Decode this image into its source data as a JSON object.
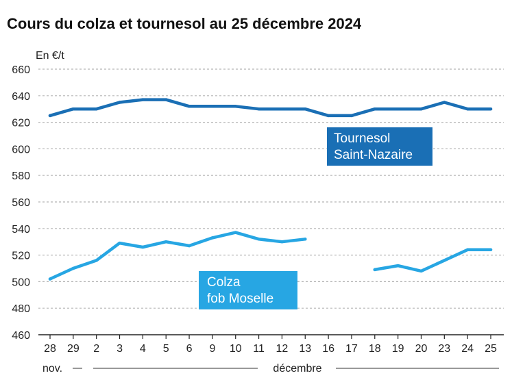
{
  "chart_data": {
    "type": "line",
    "title": "Cours du colza et tournesol au 25 décembre 2024",
    "ylabel": "En €/t",
    "ylim": [
      460,
      660
    ],
    "yticks": [
      460,
      480,
      500,
      520,
      540,
      560,
      580,
      600,
      620,
      640,
      660
    ],
    "categories": [
      "28",
      "29",
      "2",
      "3",
      "4",
      "5",
      "6",
      "9",
      "10",
      "11",
      "12",
      "13",
      "16",
      "17",
      "18",
      "19",
      "20",
      "23",
      "24",
      "25"
    ],
    "months": [
      {
        "label": "nov."
      },
      {
        "label": "décembre"
      }
    ],
    "series": [
      {
        "name": "Tournesol Saint-Nazaire",
        "label_lines": [
          "Tournesol",
          "Saint-Nazaire"
        ],
        "color": "#1a6fb5",
        "values": [
          625,
          630,
          630,
          635,
          637,
          637,
          632,
          632,
          632,
          630,
          630,
          630,
          625,
          625,
          630,
          630,
          630,
          635,
          630,
          630
        ]
      },
      {
        "name": "Colza fob Moselle",
        "label_lines": [
          "Colza",
          "fob Moselle"
        ],
        "color": "#27a6e3",
        "values": [
          502,
          510,
          516,
          529,
          526,
          530,
          527,
          533,
          537,
          532,
          530,
          532,
          null,
          null,
          509,
          512,
          508,
          516,
          524,
          524
        ]
      }
    ]
  }
}
